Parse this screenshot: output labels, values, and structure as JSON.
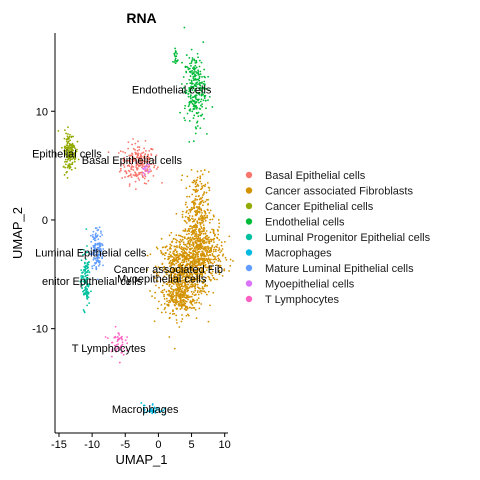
{
  "chart_data": {
    "type": "scatter",
    "title": "RNA",
    "xlabel": "UMAP_1",
    "ylabel": "UMAP_2",
    "xlim": [
      -15.6,
      10.5
    ],
    "ylim": [
      -19.6,
      17.2
    ],
    "x_ticks": [
      -15,
      -10,
      -5,
      0,
      5,
      10
    ],
    "y_ticks": [
      -10,
      0,
      10
    ],
    "x_tick_labels": [
      "-15",
      "-10",
      "-5",
      "0",
      "5",
      "10"
    ],
    "y_tick_labels": [
      "-10",
      "0",
      "10"
    ],
    "grid": false,
    "legend_position": "right",
    "series": [
      {
        "name": "Basal Epithelial cells",
        "color": "#F8766D",
        "clusters": [
          {
            "cx": -3.0,
            "cy": 5.2,
            "sx": 1.3,
            "sy": 0.9,
            "n": 220
          }
        ]
      },
      {
        "name": "Cancer associated Fibroblasts",
        "color": "#D39200",
        "clusters": [
          {
            "cx": 3.5,
            "cy": -5.0,
            "sx": 1.8,
            "sy": 1.7,
            "n": 700
          },
          {
            "cx": 6.5,
            "cy": -3.2,
            "sx": 1.6,
            "sy": 1.4,
            "n": 500
          },
          {
            "cx": 5.8,
            "cy": 0.8,
            "sx": 0.9,
            "sy": 1.8,
            "n": 250
          },
          {
            "cx": 3.2,
            "cy": -7.3,
            "sx": 0.9,
            "sy": 0.8,
            "n": 120
          }
        ]
      },
      {
        "name": "Cancer Epithelial cells",
        "color": "#93AA00",
        "clusters": [
          {
            "cx": -13.4,
            "cy": 6.3,
            "sx": 0.5,
            "sy": 0.9,
            "n": 160
          }
        ]
      },
      {
        "name": "Endothelial cells",
        "color": "#00BA38",
        "clusters": [
          {
            "cx": 5.5,
            "cy": 12.0,
            "sx": 0.8,
            "sy": 1.6,
            "n": 260
          },
          {
            "cx": 2.6,
            "cy": 15.0,
            "sx": 0.2,
            "sy": 0.5,
            "n": 20
          }
        ]
      },
      {
        "name": "Luminal Progenitor Epithelial cells",
        "color": "#00C19F",
        "clusters": [
          {
            "cx": -11.0,
            "cy": -5.5,
            "sx": 0.35,
            "sy": 1.3,
            "n": 120
          }
        ]
      },
      {
        "name": "Macrophages",
        "color": "#00B9E3",
        "clusters": [
          {
            "cx": -1.0,
            "cy": -17.4,
            "sx": 0.8,
            "sy": 0.3,
            "n": 40
          }
        ]
      },
      {
        "name": "Mature Luminal Epithelial cells",
        "color": "#619CFF",
        "clusters": [
          {
            "cx": -9.2,
            "cy": -2.7,
            "sx": 0.5,
            "sy": 0.9,
            "n": 140
          }
        ]
      },
      {
        "name": "Myoepithelial cells",
        "color": "#DB72FB",
        "clusters": [
          {
            "cx": -1.9,
            "cy": 4.7,
            "sx": 0.3,
            "sy": 0.3,
            "n": 15
          }
        ]
      },
      {
        "name": "T Lymphocytes",
        "color": "#FF61C3",
        "clusters": [
          {
            "cx": -6.2,
            "cy": -11.3,
            "sx": 0.6,
            "sy": 0.6,
            "n": 50
          }
        ]
      }
    ],
    "cluster_labels": [
      {
        "text": "Endothelial cells",
        "x": 2.0,
        "y": 12.0
      },
      {
        "text": "Epithelial cells",
        "x": -13.8,
        "y": 6.1
      },
      {
        "text": "Basal Epithelial cells",
        "x": -4.0,
        "y": 5.5
      },
      {
        "text": "Luminal Epithelial cells",
        "x": -10.2,
        "y": -3.0
      },
      {
        "text": "Cancer associated Fib",
        "x": 1.5,
        "y": -4.5
      },
      {
        "text": "Myoepithelial cells",
        "x": 0.5,
        "y": -5.4
      },
      {
        "text": "enitor Epithelial cells",
        "x": -10.0,
        "y": -5.6
      },
      {
        "text": "T Lymphocytes",
        "x": -7.5,
        "y": -11.8
      },
      {
        "text": "Macrophages",
        "x": -2.0,
        "y": -17.4
      }
    ]
  }
}
